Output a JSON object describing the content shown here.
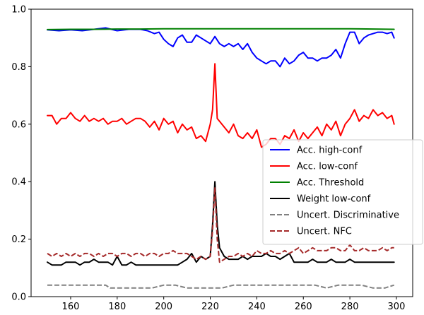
{
  "chart_data": {
    "type": "line",
    "title": "",
    "xlabel": "",
    "ylabel": "",
    "xlim": [
      143,
      307
    ],
    "ylim": [
      0.0,
      1.0
    ],
    "xticks": [
      160,
      180,
      200,
      220,
      240,
      260,
      280,
      300
    ],
    "yticks": [
      0.0,
      0.2,
      0.4,
      0.6,
      0.8,
      1.0
    ],
    "xtick_labels": [
      "160",
      "180",
      "200",
      "220",
      "240",
      "260",
      "280",
      "300"
    ],
    "ytick_labels": [
      "0.0",
      "0.2",
      "0.4",
      "0.6",
      "0.8",
      "1.0"
    ],
    "grid": false,
    "legend_position": "right",
    "series": [
      {
        "name": "Acc. high-conf",
        "color": "#0000ff",
        "dash": "solid",
        "x": [
          150,
          155,
          160,
          165,
          170,
          175,
          180,
          185,
          190,
          193,
          196,
          198,
          200,
          202,
          204,
          206,
          208,
          210,
          212,
          214,
          216,
          218,
          220,
          222,
          224,
          226,
          228,
          230,
          232,
          234,
          236,
          238,
          240,
          242,
          244,
          246,
          248,
          250,
          252,
          254,
          256,
          258,
          260,
          262,
          264,
          266,
          268,
          270,
          272,
          274,
          276,
          278,
          280,
          282,
          284,
          286,
          288,
          290,
          292,
          294,
          296,
          298,
          299
        ],
        "y": [
          0.928,
          0.925,
          0.928,
          0.925,
          0.93,
          0.935,
          0.925,
          0.93,
          0.93,
          0.925,
          0.915,
          0.92,
          0.895,
          0.88,
          0.87,
          0.9,
          0.91,
          0.885,
          0.885,
          0.91,
          0.9,
          0.89,
          0.88,
          0.905,
          0.88,
          0.87,
          0.88,
          0.87,
          0.88,
          0.86,
          0.88,
          0.85,
          0.83,
          0.82,
          0.81,
          0.82,
          0.82,
          0.8,
          0.83,
          0.81,
          0.82,
          0.84,
          0.85,
          0.83,
          0.83,
          0.82,
          0.83,
          0.83,
          0.84,
          0.86,
          0.83,
          0.88,
          0.92,
          0.92,
          0.88,
          0.9,
          0.91,
          0.915,
          0.92,
          0.92,
          0.915,
          0.92,
          0.9
        ]
      },
      {
        "name": "Acc. low-conf",
        "color": "#ff0000",
        "dash": "solid",
        "x": [
          150,
          152,
          154,
          156,
          158,
          160,
          162,
          164,
          166,
          168,
          170,
          172,
          174,
          176,
          178,
          180,
          182,
          184,
          186,
          188,
          190,
          192,
          194,
          196,
          198,
          200,
          202,
          204,
          206,
          208,
          210,
          212,
          214,
          216,
          218,
          220,
          221,
          222,
          223,
          224,
          226,
          228,
          230,
          232,
          234,
          236,
          238,
          240,
          242,
          244,
          246,
          248,
          250,
          252,
          254,
          256,
          258,
          260,
          262,
          264,
          266,
          268,
          270,
          272,
          274,
          276,
          278,
          280,
          282,
          284,
          286,
          288,
          290,
          292,
          294,
          296,
          298,
          299
        ],
        "y": [
          0.63,
          0.63,
          0.6,
          0.62,
          0.62,
          0.64,
          0.62,
          0.61,
          0.63,
          0.61,
          0.62,
          0.61,
          0.62,
          0.6,
          0.61,
          0.61,
          0.62,
          0.6,
          0.61,
          0.62,
          0.62,
          0.61,
          0.59,
          0.61,
          0.58,
          0.62,
          0.6,
          0.61,
          0.57,
          0.6,
          0.58,
          0.59,
          0.55,
          0.56,
          0.54,
          0.6,
          0.65,
          0.81,
          0.62,
          0.61,
          0.59,
          0.57,
          0.6,
          0.56,
          0.55,
          0.57,
          0.55,
          0.58,
          0.52,
          0.53,
          0.55,
          0.55,
          0.53,
          0.56,
          0.55,
          0.58,
          0.54,
          0.57,
          0.55,
          0.57,
          0.59,
          0.56,
          0.6,
          0.58,
          0.61,
          0.56,
          0.6,
          0.62,
          0.65,
          0.61,
          0.63,
          0.62,
          0.65,
          0.63,
          0.64,
          0.62,
          0.63,
          0.6
        ]
      },
      {
        "name": "Acc. Threshold",
        "color": "#008000",
        "dash": "solid",
        "x": [
          150,
          160,
          170,
          180,
          190,
          200,
          210,
          220,
          230,
          240,
          250,
          260,
          270,
          280,
          290,
          299
        ],
        "y": [
          0.929,
          0.93,
          0.93,
          0.931,
          0.931,
          0.932,
          0.932,
          0.932,
          0.932,
          0.932,
          0.932,
          0.932,
          0.932,
          0.932,
          0.931,
          0.93
        ]
      },
      {
        "name": "Weight low-conf",
        "color": "#000000",
        "dash": "solid",
        "x": [
          150,
          152,
          154,
          156,
          158,
          160,
          162,
          164,
          166,
          168,
          170,
          172,
          174,
          176,
          178,
          180,
          182,
          184,
          186,
          188,
          190,
          192,
          194,
          196,
          198,
          200,
          202,
          204,
          206,
          208,
          210,
          212,
          214,
          216,
          218,
          220,
          221,
          222,
          223,
          224,
          226,
          228,
          230,
          232,
          234,
          236,
          238,
          240,
          242,
          244,
          246,
          248,
          250,
          252,
          254,
          256,
          258,
          260,
          262,
          264,
          266,
          268,
          270,
          272,
          274,
          276,
          278,
          280,
          282,
          284,
          286,
          288,
          290,
          292,
          294,
          296,
          298,
          299
        ],
        "y": [
          0.12,
          0.11,
          0.11,
          0.11,
          0.12,
          0.12,
          0.12,
          0.11,
          0.12,
          0.12,
          0.13,
          0.12,
          0.12,
          0.12,
          0.11,
          0.14,
          0.11,
          0.11,
          0.12,
          0.11,
          0.11,
          0.11,
          0.11,
          0.11,
          0.11,
          0.11,
          0.11,
          0.11,
          0.11,
          0.12,
          0.13,
          0.15,
          0.12,
          0.14,
          0.13,
          0.14,
          0.25,
          0.4,
          0.25,
          0.17,
          0.14,
          0.13,
          0.13,
          0.13,
          0.14,
          0.13,
          0.14,
          0.14,
          0.14,
          0.15,
          0.14,
          0.14,
          0.13,
          0.14,
          0.15,
          0.12,
          0.12,
          0.12,
          0.12,
          0.13,
          0.12,
          0.12,
          0.12,
          0.13,
          0.12,
          0.12,
          0.12,
          0.13,
          0.12,
          0.12,
          0.12,
          0.12,
          0.12,
          0.12,
          0.12,
          0.12,
          0.12,
          0.12
        ]
      },
      {
        "name": "Uncert. Discriminative",
        "color": "#808080",
        "dash": "dashed",
        "x": [
          150,
          155,
          160,
          165,
          170,
          175,
          177,
          180,
          185,
          190,
          195,
          200,
          205,
          210,
          215,
          220,
          225,
          230,
          235,
          240,
          245,
          250,
          255,
          260,
          265,
          270,
          275,
          280,
          285,
          290,
          295,
          299
        ],
        "y": [
          0.04,
          0.04,
          0.04,
          0.04,
          0.04,
          0.04,
          0.03,
          0.03,
          0.03,
          0.03,
          0.03,
          0.04,
          0.04,
          0.03,
          0.03,
          0.03,
          0.03,
          0.04,
          0.04,
          0.04,
          0.04,
          0.04,
          0.04,
          0.04,
          0.04,
          0.03,
          0.04,
          0.04,
          0.04,
          0.03,
          0.03,
          0.04
        ]
      },
      {
        "name": "Uncert. NFC",
        "color": "#a52a2a",
        "dash": "dashed",
        "x": [
          150,
          152,
          154,
          156,
          158,
          160,
          162,
          164,
          166,
          168,
          170,
          172,
          174,
          176,
          178,
          180,
          182,
          184,
          186,
          188,
          190,
          192,
          194,
          196,
          198,
          200,
          202,
          204,
          206,
          208,
          210,
          212,
          214,
          216,
          218,
          220,
          221,
          222,
          223,
          224,
          226,
          228,
          230,
          232,
          234,
          236,
          238,
          240,
          242,
          244,
          246,
          248,
          250,
          252,
          254,
          256,
          258,
          260,
          262,
          264,
          266,
          268,
          270,
          272,
          274,
          276,
          278,
          280,
          282,
          284,
          286,
          288,
          290,
          292,
          294,
          296,
          298,
          299
        ],
        "y": [
          0.15,
          0.14,
          0.15,
          0.14,
          0.15,
          0.14,
          0.15,
          0.14,
          0.15,
          0.15,
          0.14,
          0.15,
          0.14,
          0.15,
          0.15,
          0.14,
          0.15,
          0.15,
          0.14,
          0.15,
          0.15,
          0.14,
          0.15,
          0.15,
          0.14,
          0.15,
          0.15,
          0.16,
          0.15,
          0.15,
          0.15,
          0.14,
          0.13,
          0.14,
          0.13,
          0.14,
          0.23,
          0.38,
          0.2,
          0.12,
          0.13,
          0.14,
          0.14,
          0.15,
          0.14,
          0.15,
          0.14,
          0.16,
          0.15,
          0.15,
          0.16,
          0.15,
          0.15,
          0.16,
          0.15,
          0.16,
          0.17,
          0.15,
          0.16,
          0.17,
          0.16,
          0.16,
          0.16,
          0.17,
          0.17,
          0.16,
          0.16,
          0.18,
          0.16,
          0.16,
          0.17,
          0.16,
          0.16,
          0.16,
          0.17,
          0.16,
          0.17,
          0.17
        ]
      }
    ]
  }
}
